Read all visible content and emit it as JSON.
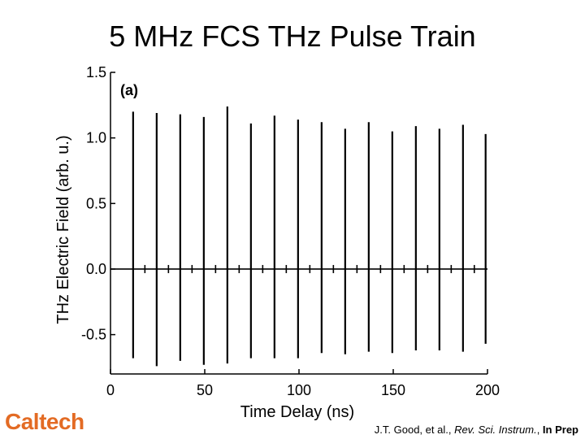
{
  "slide": {
    "title": "5 MHz FCS THz Pulse Train",
    "logo": "Caltech",
    "citation": {
      "authors": "J.T. Good, et al., ",
      "journal": "Rev. Sci. Instrum.",
      "sep": ", ",
      "status": "In Prep"
    }
  },
  "chart_data": {
    "type": "line",
    "panel_label": "(a)",
    "xlabel": "Time Delay (ns)",
    "ylabel": "THz Electric Field (arb. u.)",
    "xlim": [
      0,
      200
    ],
    "ylim": [
      -0.8,
      1.5
    ],
    "xticks": [
      0,
      50,
      100,
      150,
      200
    ],
    "yticks": [
      -0.5,
      0.0,
      0.5,
      1.0,
      1.5
    ],
    "ytick_labels": [
      "-0.5",
      "0.0",
      "0.5",
      "1.0",
      "1.5"
    ],
    "grid": false,
    "line_color": "#000000",
    "baseline": 0.0,
    "series": [
      {
        "pulse_times": [
          12,
          24.5,
          37,
          49.5,
          62,
          74.5,
          87,
          99.5,
          112,
          124.5,
          137,
          149.5,
          162,
          174.5,
          187,
          199
        ],
        "pulse_max": [
          1.2,
          1.19,
          1.18,
          1.16,
          1.24,
          1.11,
          1.17,
          1.14,
          1.12,
          1.07,
          1.12,
          1.05,
          1.09,
          1.07,
          1.1,
          1.03
        ],
        "pulse_min": [
          -0.68,
          -0.74,
          -0.7,
          -0.73,
          -0.72,
          -0.68,
          -0.68,
          -0.68,
          -0.64,
          -0.65,
          -0.63,
          -0.64,
          -0.62,
          -0.62,
          -0.63,
          -0.57
        ]
      }
    ]
  }
}
